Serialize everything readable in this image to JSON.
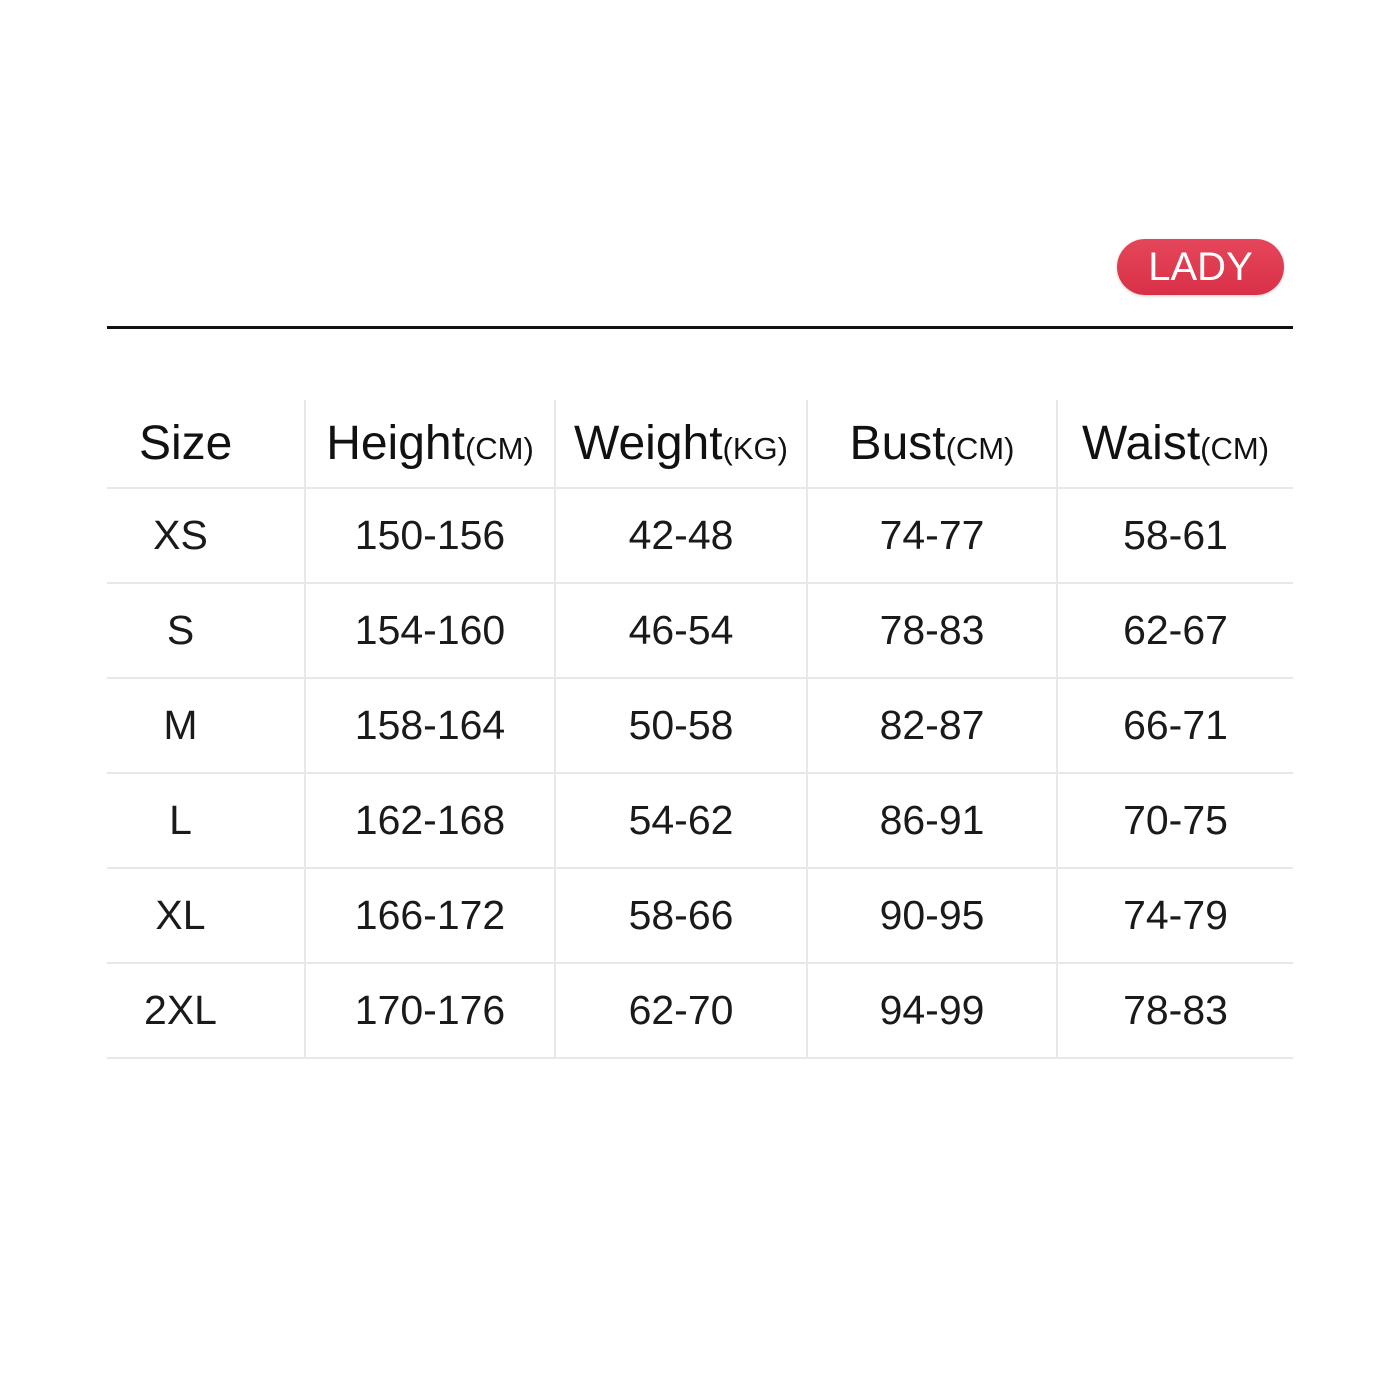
{
  "badge": "LADY",
  "headers": [
    {
      "label": "Size",
      "unit": ""
    },
    {
      "label": "Height",
      "unit": "(CM)"
    },
    {
      "label": "Weight",
      "unit": "(KG)"
    },
    {
      "label": "Bust",
      "unit": "(CM)"
    },
    {
      "label": "Waist",
      "unit": "(CM)"
    }
  ],
  "rows": [
    [
      "XS",
      "150-156",
      "42-48",
      "74-77",
      "58-61"
    ],
    [
      "S",
      "154-160",
      "46-54",
      "78-83",
      "62-67"
    ],
    [
      "M",
      "158-164",
      "50-58",
      "82-87",
      "66-71"
    ],
    [
      "L",
      "162-168",
      "54-62",
      "86-91",
      "70-75"
    ],
    [
      "XL",
      "166-172",
      "58-66",
      "90-95",
      "74-79"
    ],
    [
      "2XL",
      "170-176",
      "62-70",
      "94-99",
      "78-83"
    ]
  ],
  "colors": {
    "badge": "#dd3a4f",
    "rule": "#111111",
    "grid": "#e8e8e8"
  }
}
